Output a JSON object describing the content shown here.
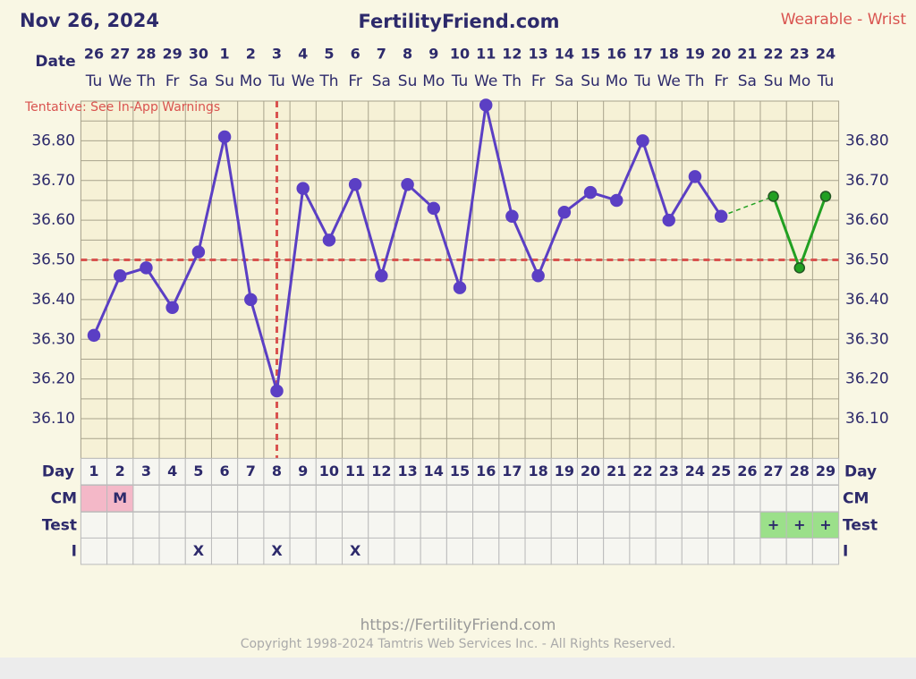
{
  "header": {
    "date": "Nov 26, 2024",
    "site": "FertilityFriend.com",
    "source": "Wearable - Wrist"
  },
  "chart_data": {
    "type": "line",
    "date_label": "Date",
    "warning": "Tentative: See In-App Warnings",
    "categories": [
      "26",
      "27",
      "28",
      "29",
      "30",
      "1",
      "2",
      "3",
      "4",
      "5",
      "6",
      "7",
      "8",
      "9",
      "10",
      "11",
      "12",
      "13",
      "14",
      "15",
      "16",
      "17",
      "18",
      "19",
      "20",
      "21",
      "22",
      "23",
      "24"
    ],
    "weekdays": [
      "Tu",
      "We",
      "Th",
      "Fr",
      "Sa",
      "Su",
      "Mo",
      "Tu",
      "We",
      "Th",
      "Fr",
      "Sa",
      "Su",
      "Mo",
      "Tu",
      "We",
      "Th",
      "Fr",
      "Sa",
      "Su",
      "Mo",
      "Tu",
      "We",
      "Th",
      "Fr",
      "Sa",
      "Su",
      "Mo",
      "Tu"
    ],
    "series": [
      {
        "color": "#5b3fc4",
        "values": [
          36.31,
          36.46,
          36.48,
          36.38,
          36.52,
          36.81,
          36.4,
          36.17,
          36.68,
          36.55,
          36.69,
          36.46,
          36.69,
          36.63,
          36.43,
          36.89,
          36.61,
          36.46,
          36.62,
          36.67,
          36.65,
          36.8,
          36.6,
          36.71,
          36.61,
          null,
          null,
          null,
          null
        ]
      },
      {
        "color": "#22a022",
        "values": [
          null,
          null,
          null,
          null,
          null,
          null,
          null,
          null,
          null,
          null,
          null,
          null,
          null,
          null,
          null,
          null,
          null,
          null,
          null,
          null,
          null,
          null,
          null,
          null,
          null,
          null,
          36.66,
          36.48,
          36.66
        ]
      }
    ],
    "ylim": [
      36.0,
      36.9
    ],
    "yticks": [
      {
        "value": 36.1,
        "label": "36.10"
      },
      {
        "value": 36.2,
        "label": "36.20"
      },
      {
        "value": 36.3,
        "label": "36.30"
      },
      {
        "value": 36.4,
        "label": "36.40"
      },
      {
        "value": 36.5,
        "label": "36.50"
      },
      {
        "value": 36.6,
        "label": "36.60"
      },
      {
        "value": 36.7,
        "label": "36.70"
      },
      {
        "value": 36.8,
        "label": "36.80"
      }
    ],
    "ygrid": [
      36.05,
      36.1,
      36.15,
      36.2,
      36.25,
      36.3,
      36.35,
      36.4,
      36.45,
      36.5,
      36.55,
      36.6,
      36.65,
      36.7,
      36.75,
      36.8,
      36.85
    ],
    "coverline": 36.5,
    "ovulation_day": 8,
    "line_color": "#d9534f",
    "day_label": "Day",
    "days": [
      1,
      2,
      3,
      4,
      5,
      6,
      7,
      8,
      9,
      10,
      11,
      12,
      13,
      14,
      15,
      16,
      17,
      18,
      19,
      20,
      21,
      22,
      23,
      24,
      25,
      26,
      27,
      28,
      29
    ],
    "rows": [
      {
        "label": "CM",
        "fill": "#f4b8c8",
        "filled_days": [
          1,
          2
        ],
        "cells": [
          null,
          "M",
          null,
          null,
          null,
          null,
          null,
          null,
          null,
          null,
          null,
          null,
          null,
          null,
          null,
          null,
          null,
          null,
          null,
          null,
          null,
          null,
          null,
          null,
          null,
          null,
          null,
          null,
          null
        ]
      },
      {
        "label": "Test",
        "fill": "#9be08a",
        "filled_days": [
          27,
          28,
          29
        ],
        "cells": [
          null,
          null,
          null,
          null,
          null,
          null,
          null,
          null,
          null,
          null,
          null,
          null,
          null,
          null,
          null,
          null,
          null,
          null,
          null,
          null,
          null,
          null,
          null,
          null,
          null,
          null,
          "+",
          "+",
          "+"
        ]
      },
      {
        "label": "I",
        "cells": [
          null,
          null,
          null,
          null,
          "X",
          null,
          null,
          "X",
          null,
          null,
          "X",
          null,
          null,
          null,
          null,
          null,
          null,
          null,
          null,
          null,
          null,
          null,
          null,
          null,
          null,
          null,
          null,
          null,
          null
        ]
      }
    ]
  },
  "footer": {
    "url": "https://FertilityFriend.com",
    "copyright": "Copyright 1998-2024 Tamtris Web Services Inc. - All Rights Reserved."
  }
}
